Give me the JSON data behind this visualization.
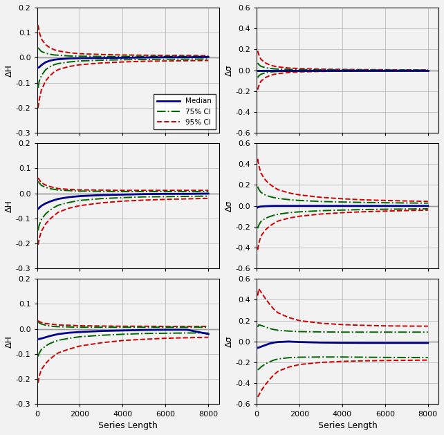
{
  "x": [
    50,
    100,
    200,
    400,
    600,
    800,
    1000,
    1500,
    2000,
    3000,
    4000,
    5000,
    6000,
    7000,
    8000
  ],
  "left_ylim": [
    -0.3,
    0.2
  ],
  "right_ylim": [
    -0.6,
    0.6
  ],
  "left_yticks": [
    -0.3,
    -0.2,
    -0.1,
    0.0,
    0.1,
    0.2
  ],
  "right_yticks": [
    -0.6,
    -0.4,
    -0.2,
    0.0,
    0.2,
    0.4,
    0.6
  ],
  "xlim": [
    0,
    8500
  ],
  "xticks": [
    0,
    2000,
    4000,
    6000,
    8000
  ],
  "xlabel": "Series Length",
  "left_ylabel": "ΔH",
  "right_ylabel": "Δσ",
  "median_color": "#00008B",
  "ci75_color": "#006400",
  "ci95_color": "#CC0000",
  "median_lw": 2.0,
  "ci_lw": 1.4,
  "H_median_1": [
    -0.04,
    -0.038,
    -0.03,
    -0.018,
    -0.012,
    -0.008,
    -0.006,
    -0.003,
    -0.002,
    -0.001,
    0.0,
    0.001,
    0.002,
    0.002,
    0.003
  ],
  "H_ci75_upper_1": [
    0.04,
    0.035,
    0.025,
    0.018,
    0.014,
    0.011,
    0.01,
    0.007,
    0.006,
    0.005,
    0.005,
    0.005,
    0.005,
    0.005,
    0.005
  ],
  "H_ci75_lower_1": [
    -0.12,
    -0.095,
    -0.072,
    -0.048,
    -0.036,
    -0.028,
    -0.023,
    -0.017,
    -0.013,
    -0.01,
    -0.008,
    -0.007,
    -0.006,
    -0.006,
    -0.005
  ],
  "H_ci95_upper_1": [
    0.13,
    0.105,
    0.075,
    0.052,
    0.04,
    0.032,
    0.027,
    0.02,
    0.016,
    0.013,
    0.011,
    0.01,
    0.009,
    0.009,
    0.008
  ],
  "H_ci95_lower_1": [
    -0.2,
    -0.17,
    -0.13,
    -0.093,
    -0.072,
    -0.057,
    -0.047,
    -0.035,
    -0.028,
    -0.021,
    -0.017,
    -0.014,
    -0.013,
    -0.012,
    -0.011
  ],
  "S_median_1": [
    0.0,
    0.0,
    0.0,
    0.0,
    0.0,
    0.0,
    0.0,
    0.0,
    0.0,
    0.0,
    0.0,
    0.0,
    0.0,
    0.0,
    0.0
  ],
  "S_ci75_upper_1": [
    0.07,
    0.055,
    0.038,
    0.025,
    0.018,
    0.014,
    0.011,
    0.008,
    0.006,
    0.004,
    0.003,
    0.003,
    0.002,
    0.002,
    0.002
  ],
  "S_ci75_lower_1": [
    -0.07,
    -0.055,
    -0.038,
    -0.025,
    -0.018,
    -0.014,
    -0.011,
    -0.008,
    -0.006,
    -0.004,
    -0.003,
    -0.003,
    -0.002,
    -0.002,
    -0.002
  ],
  "S_ci95_upper_1": [
    0.185,
    0.15,
    0.105,
    0.072,
    0.052,
    0.04,
    0.032,
    0.022,
    0.016,
    0.011,
    0.008,
    0.006,
    0.005,
    0.004,
    0.004
  ],
  "S_ci95_lower_1": [
    -0.185,
    -0.15,
    -0.105,
    -0.072,
    -0.052,
    -0.04,
    -0.032,
    -0.022,
    -0.016,
    -0.011,
    -0.008,
    -0.006,
    -0.005,
    -0.004,
    -0.004
  ],
  "H_median_2": [
    -0.062,
    -0.058,
    -0.05,
    -0.04,
    -0.033,
    -0.027,
    -0.022,
    -0.015,
    -0.011,
    -0.007,
    -0.005,
    -0.003,
    -0.002,
    -0.002,
    -0.001
  ],
  "H_ci75_upper_2": [
    0.048,
    0.042,
    0.032,
    0.024,
    0.019,
    0.016,
    0.013,
    0.011,
    0.009,
    0.008,
    0.007,
    0.007,
    0.007,
    0.007,
    0.007
  ],
  "H_ci75_lower_2": [
    -0.148,
    -0.128,
    -0.105,
    -0.082,
    -0.067,
    -0.056,
    -0.047,
    -0.036,
    -0.028,
    -0.021,
    -0.017,
    -0.014,
    -0.013,
    -0.012,
    -0.011
  ],
  "H_ci95_upper_2": [
    0.062,
    0.055,
    0.043,
    0.033,
    0.027,
    0.023,
    0.019,
    0.016,
    0.014,
    0.013,
    0.012,
    0.012,
    0.012,
    0.012,
    0.012
  ],
  "H_ci95_lower_2": [
    -0.205,
    -0.182,
    -0.152,
    -0.122,
    -0.103,
    -0.088,
    -0.075,
    -0.059,
    -0.049,
    -0.038,
    -0.031,
    -0.027,
    -0.024,
    -0.022,
    -0.02
  ],
  "S_median_2": [
    -0.015,
    -0.01,
    -0.006,
    -0.003,
    -0.001,
    0.0,
    0.0,
    0.0,
    0.0,
    0.0,
    0.0,
    0.0,
    0.0,
    0.0,
    0.0
  ],
  "S_ci75_upper_2": [
    0.185,
    0.16,
    0.13,
    0.105,
    0.09,
    0.08,
    0.072,
    0.06,
    0.052,
    0.042,
    0.037,
    0.033,
    0.03,
    0.028,
    0.026
  ],
  "S_ci75_lower_2": [
    -0.215,
    -0.185,
    -0.15,
    -0.12,
    -0.103,
    -0.09,
    -0.08,
    -0.065,
    -0.057,
    -0.046,
    -0.04,
    -0.035,
    -0.032,
    -0.03,
    -0.028
  ],
  "S_ci95_upper_2": [
    0.45,
    0.39,
    0.315,
    0.25,
    0.21,
    0.18,
    0.155,
    0.125,
    0.105,
    0.082,
    0.068,
    0.058,
    0.052,
    0.047,
    0.043
  ],
  "S_ci95_lower_2": [
    -0.42,
    -0.36,
    -0.29,
    -0.232,
    -0.195,
    -0.168,
    -0.145,
    -0.117,
    -0.099,
    -0.078,
    -0.065,
    -0.056,
    -0.05,
    -0.045,
    -0.041
  ],
  "H_median_3": [
    -0.04,
    -0.04,
    -0.038,
    -0.033,
    -0.028,
    -0.024,
    -0.02,
    -0.015,
    -0.012,
    -0.008,
    -0.006,
    -0.004,
    -0.003,
    -0.003,
    -0.02
  ],
  "H_ci75_upper_3": [
    0.028,
    0.025,
    0.02,
    0.015,
    0.012,
    0.01,
    0.009,
    0.008,
    0.007,
    0.007,
    0.007,
    0.007,
    0.007,
    0.007,
    0.007
  ],
  "H_ci75_lower_3": [
    -0.11,
    -0.097,
    -0.082,
    -0.068,
    -0.058,
    -0.051,
    -0.045,
    -0.037,
    -0.031,
    -0.025,
    -0.021,
    -0.018,
    -0.017,
    -0.016,
    -0.016
  ],
  "H_ci95_upper_3": [
    0.033,
    0.03,
    0.026,
    0.022,
    0.02,
    0.018,
    0.016,
    0.015,
    0.013,
    0.012,
    0.011,
    0.011,
    0.01,
    0.01,
    0.01
  ],
  "H_ci95_lower_3": [
    -0.215,
    -0.19,
    -0.162,
    -0.138,
    -0.12,
    -0.107,
    -0.095,
    -0.08,
    -0.068,
    -0.055,
    -0.046,
    -0.041,
    -0.037,
    -0.035,
    -0.033
  ],
  "S_median_3": [
    -0.06,
    -0.058,
    -0.05,
    -0.035,
    -0.02,
    -0.01,
    -0.005,
    0.0,
    -0.005,
    -0.01,
    -0.012,
    -0.013,
    -0.013,
    -0.013,
    -0.013
  ],
  "S_ci75_upper_3": [
    0.14,
    0.16,
    0.155,
    0.14,
    0.125,
    0.115,
    0.108,
    0.1,
    0.095,
    0.092,
    0.09,
    0.09,
    0.09,
    0.09,
    0.09
  ],
  "S_ci75_lower_3": [
    -0.27,
    -0.265,
    -0.245,
    -0.215,
    -0.195,
    -0.178,
    -0.167,
    -0.155,
    -0.15,
    -0.148,
    -0.148,
    -0.15,
    -0.152,
    -0.153,
    -0.153
  ],
  "S_ci95_upper_3": [
    0.44,
    0.505,
    0.475,
    0.415,
    0.36,
    0.31,
    0.275,
    0.23,
    0.2,
    0.175,
    0.162,
    0.155,
    0.15,
    0.148,
    0.147
  ],
  "S_ci95_lower_3": [
    -0.53,
    -0.515,
    -0.475,
    -0.415,
    -0.365,
    -0.32,
    -0.285,
    -0.245,
    -0.22,
    -0.2,
    -0.19,
    -0.185,
    -0.182,
    -0.18,
    -0.178
  ],
  "grid_color": "#bbbbbb",
  "bg_color": "#f2f2f2"
}
